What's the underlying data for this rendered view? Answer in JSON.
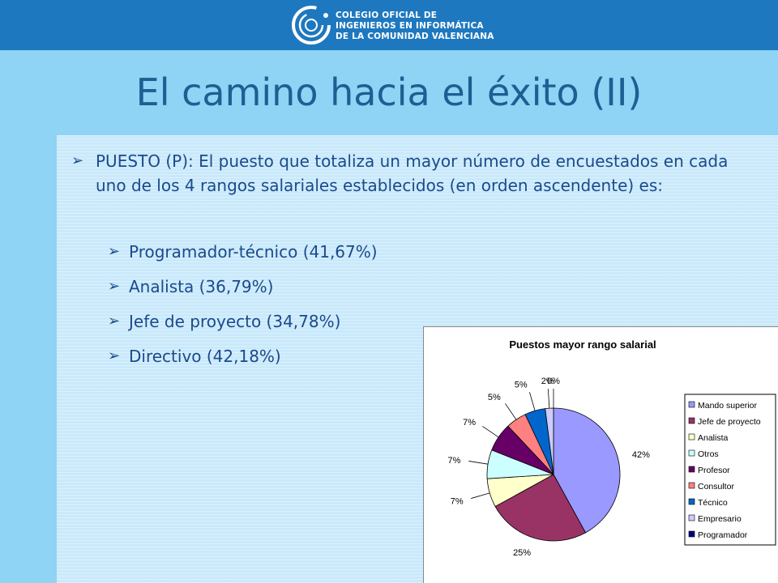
{
  "header": {
    "org_line1": "COLEGIO OFICIAL DE",
    "org_line2": "INGENIEROS EN INFORMÁTICA",
    "org_line3": "DE LA COMUNIDAD VALENCIANA",
    "logo_color": "#ffffff",
    "bar_color": "#1e78bf"
  },
  "slide": {
    "title": "El camino hacia el éxito (II)",
    "bullet": "PUESTO (P): El puesto que totaliza un mayor número de encuestados en cada uno de los 4 rangos salariales establecidos (en orden ascendente) es:",
    "sub_items": [
      "Programador-técnico (41,67%)",
      "Analista (36,79%)",
      "Jefe de proyecto (34,78%)",
      "Directivo (42,18%)"
    ]
  },
  "chart_data": {
    "type": "pie",
    "title": "Puestos mayor rango salarial",
    "legend_position": "right",
    "categories": [
      "Mando superior",
      "Jefe de proyecto",
      "Analista",
      "Otros",
      "Profesor",
      "Consultor",
      "Técnico",
      "Empresario",
      "Programador"
    ],
    "values": [
      42,
      25,
      7,
      7,
      7,
      5,
      5,
      2,
      0
    ],
    "labels": [
      "42%",
      "25%",
      "7%",
      "7%",
      "7%",
      "5%",
      "5%",
      "2%",
      "0%"
    ],
    "colors": [
      "#9999ff",
      "#993366",
      "#ffffcc",
      "#ccffff",
      "#660066",
      "#ff8080",
      "#0066cc",
      "#ccccff",
      "#000080"
    ]
  }
}
